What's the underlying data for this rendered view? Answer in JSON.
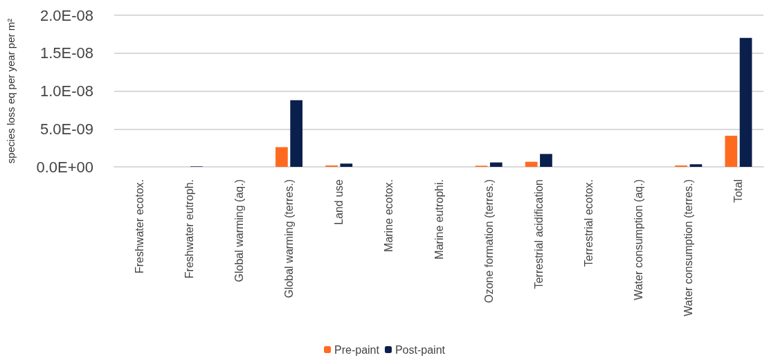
{
  "chart_data": {
    "type": "bar",
    "ylabel": "species loss eq per year per m²",
    "categories": [
      "Freshwater ecotox.",
      "Freshwater eutroph.",
      "Global warming (aq.)",
      "Global warming (terres.)",
      "Land use",
      "Marine ecotox.",
      "Marine eutrophi.",
      "Ozone formation (terres.)",
      "Terrestrial acidification",
      "Terrestrial ecotox.",
      "Water consumption (aq.)",
      "Water consumption (terres.)",
      "Total"
    ],
    "series": [
      {
        "name": "Pre-paint",
        "color": "#ff6a21",
        "values": [
          0,
          0,
          0,
          2.6e-09,
          1.8e-10,
          0,
          0,
          1.5e-10,
          6.7e-10,
          0,
          0,
          1.8e-10,
          4.1e-09
        ]
      },
      {
        "name": "Post-paint",
        "color": "#0a1f4b",
        "values": [
          0,
          6e-11,
          0,
          8.8e-09,
          4.3e-10,
          0,
          0,
          5.8e-10,
          1.7e-09,
          0,
          0,
          3.4e-10,
          1.7e-08
        ]
      }
    ],
    "ylim": [
      0,
      2e-08
    ],
    "yticks": [
      {
        "value": 0,
        "label": "0.0E+00"
      },
      {
        "value": 5e-09,
        "label": "5.0E-09"
      },
      {
        "value": 1e-08,
        "label": "1.0E-08"
      },
      {
        "value": 1.5e-08,
        "label": "1.5E-08"
      },
      {
        "value": 2e-08,
        "label": "2.0E-08"
      }
    ],
    "grid": "y",
    "legend": "bottom"
  }
}
